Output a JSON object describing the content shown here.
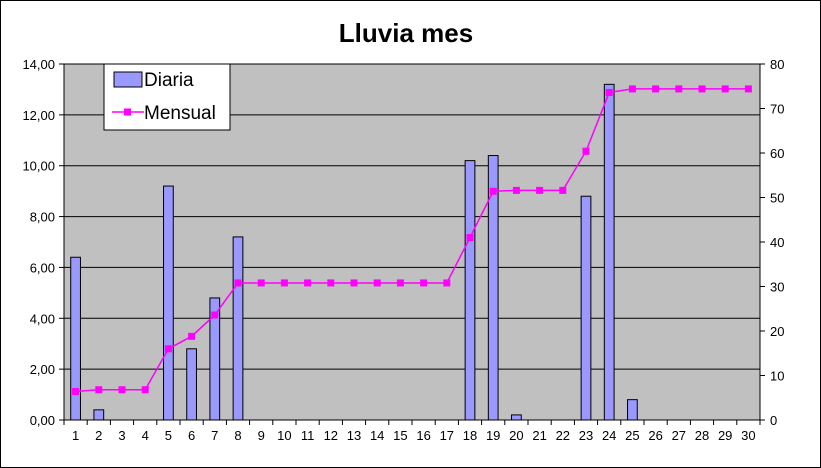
{
  "chart_data": {
    "type": "bar",
    "title": "Lluvia mes",
    "categories": [
      "1",
      "2",
      "3",
      "4",
      "5",
      "6",
      "7",
      "8",
      "9",
      "10",
      "11",
      "12",
      "13",
      "14",
      "15",
      "16",
      "17",
      "18",
      "19",
      "20",
      "21",
      "22",
      "23",
      "24",
      "25",
      "26",
      "27",
      "28",
      "29",
      "30"
    ],
    "series": [
      {
        "name": "Diaria",
        "type": "bar",
        "axis": "left",
        "color": "#9999ff",
        "values": [
          6.4,
          0.4,
          0,
          0,
          9.2,
          2.8,
          4.8,
          7.2,
          0,
          0,
          0,
          0,
          0,
          0,
          0,
          0,
          0,
          10.2,
          10.4,
          0.2,
          0,
          0,
          8.8,
          13.2,
          0.8,
          0,
          0,
          0,
          0,
          0
        ]
      },
      {
        "name": "Mensual",
        "type": "line",
        "axis": "right",
        "color": "#ff00ff",
        "values": [
          6.4,
          6.8,
          6.8,
          6.8,
          16.0,
          18.8,
          23.6,
          30.8,
          30.8,
          30.8,
          30.8,
          30.8,
          30.8,
          30.8,
          30.8,
          30.8,
          30.8,
          41.0,
          51.4,
          51.6,
          51.6,
          51.6,
          60.4,
          73.6,
          74.4,
          74.4,
          74.4,
          74.4,
          74.4,
          74.4
        ]
      }
    ],
    "y_left": {
      "ylim": [
        0,
        14
      ],
      "ticks": [
        "0,00",
        "2,00",
        "4,00",
        "6,00",
        "8,00",
        "10,00",
        "12,00",
        "14,00"
      ]
    },
    "y_right": {
      "ylim": [
        0,
        80
      ],
      "ticks": [
        "0",
        "10",
        "20",
        "30",
        "40",
        "50",
        "60",
        "70",
        "80"
      ]
    },
    "grid": true,
    "legend": "top-left",
    "plot_background": "#c0c0c0"
  }
}
